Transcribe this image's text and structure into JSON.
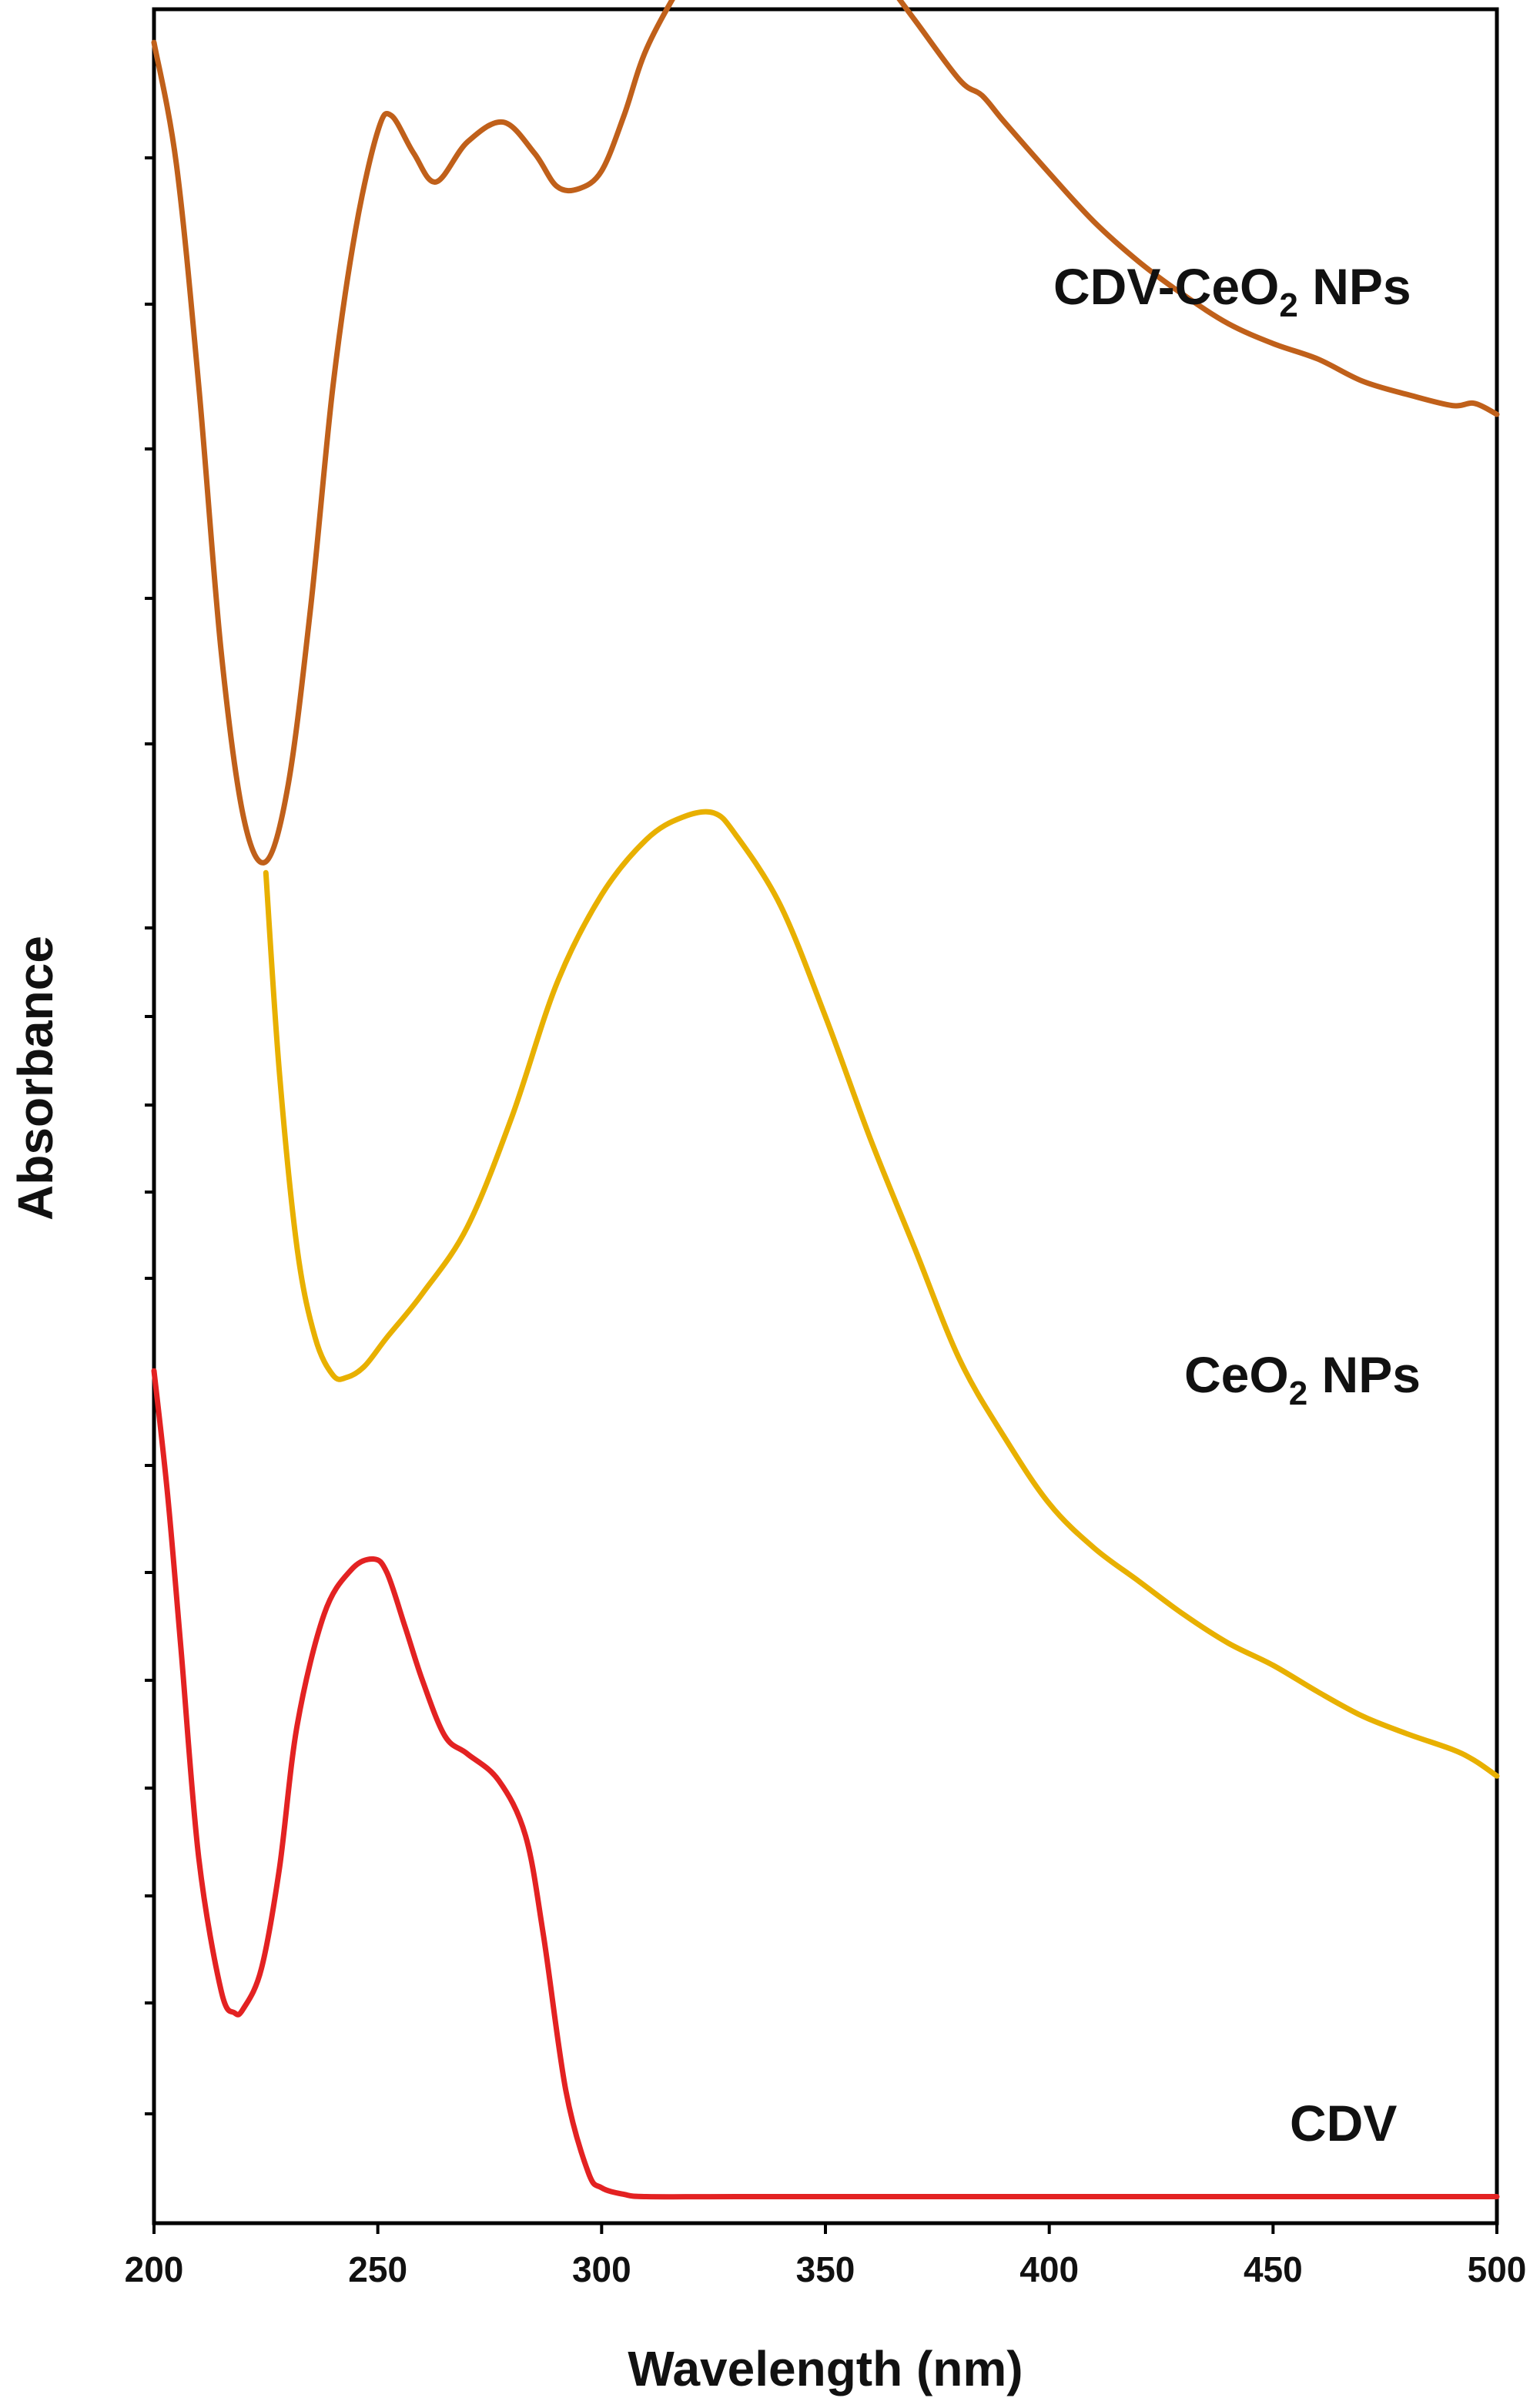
{
  "chart_data": {
    "type": "line",
    "title": "",
    "xlabel": "Wavelength (nm)",
    "ylabel": "Absorbance",
    "xlim": [
      200,
      500
    ],
    "x_ticks": [
      200,
      250,
      300,
      350,
      400,
      450,
      500
    ],
    "ylim": [
      0,
      100
    ],
    "y_ticks_labeled": false,
    "grid": false,
    "legend": "inline labels next to curves",
    "series": [
      {
        "label_main": "CDV-CeO",
        "label_sub": "2",
        "label_tail": " NPs",
        "color": "#c0601a",
        "x": [
          200,
          205,
          210,
          215,
          220,
          225,
          230,
          235,
          240,
          245,
          250,
          253,
          258,
          263,
          270,
          278,
          285,
          290,
          295,
          300,
          305,
          310,
          318,
          325,
          330,
          335,
          340,
          345,
          350,
          355,
          360,
          370,
          380,
          385,
          390,
          400,
          410,
          420,
          430,
          440,
          450,
          460,
          470,
          480,
          490,
          495,
          500
        ],
        "y": [
          98.5,
          93,
          83,
          71,
          63.5,
          61.5,
          65,
          73,
          83,
          90,
          94.5,
          95.2,
          93.5,
          92.2,
          94,
          94.9,
          93.5,
          92,
          91.9,
          92.7,
          95.2,
          98.2,
          101.2,
          103.3,
          104.2,
          104.1,
          104.6,
          104.8,
          104.3,
          103.2,
          102.2,
          99.5,
          96.8,
          96.1,
          94.9,
          92.6,
          90.4,
          88.6,
          87.1,
          85.8,
          84.9,
          84.2,
          83.2,
          82.6,
          82.1,
          82.2,
          81.7
        ]
      },
      {
        "label_main": "CeO",
        "label_sub": "2",
        "label_tail": " NPs",
        "color": "#e8b000",
        "x": [
          225,
          228,
          232,
          236,
          240,
          243,
          247,
          252,
          260,
          270,
          280,
          290,
          300,
          310,
          318,
          325,
          330,
          340,
          350,
          360,
          370,
          380,
          390,
          400,
          410,
          420,
          430,
          440,
          450,
          460,
          470,
          480,
          490,
          495,
          500
        ],
        "y": [
          61,
          52,
          44,
          40,
          38.3,
          38.2,
          38.7,
          40,
          42,
          45,
          50,
          56,
          60,
          62.5,
          63.5,
          63.7,
          62.7,
          59.5,
          54.5,
          49,
          44,
          39,
          35.5,
          32.5,
          30.5,
          29,
          27.5,
          26.2,
          25.2,
          24,
          22.9,
          22.1,
          21.4,
          20.9,
          20.2
        ]
      },
      {
        "label_main": "CDV",
        "label_sub": "",
        "label_tail": "",
        "color": "#e32222",
        "x": [
          200,
          203,
          206,
          210,
          215,
          218,
          220,
          224,
          228,
          232,
          238,
          244,
          249,
          252,
          256,
          260,
          265,
          270,
          277,
          283,
          287,
          292,
          297,
          300,
          305,
          310,
          330,
          350,
          370,
          400,
          450,
          500
        ],
        "y": [
          38.5,
          33,
          26,
          16.5,
          10.5,
          9.5,
          9.7,
          11.5,
          16,
          22.5,
          27.5,
          29.5,
          30,
          29.4,
          27,
          24.5,
          22,
          21.2,
          20,
          17.5,
          13,
          6,
          2.3,
          1.6,
          1.3,
          1.2,
          1.2,
          1.2,
          1.2,
          1.2,
          1.2,
          1.2
        ]
      }
    ]
  }
}
